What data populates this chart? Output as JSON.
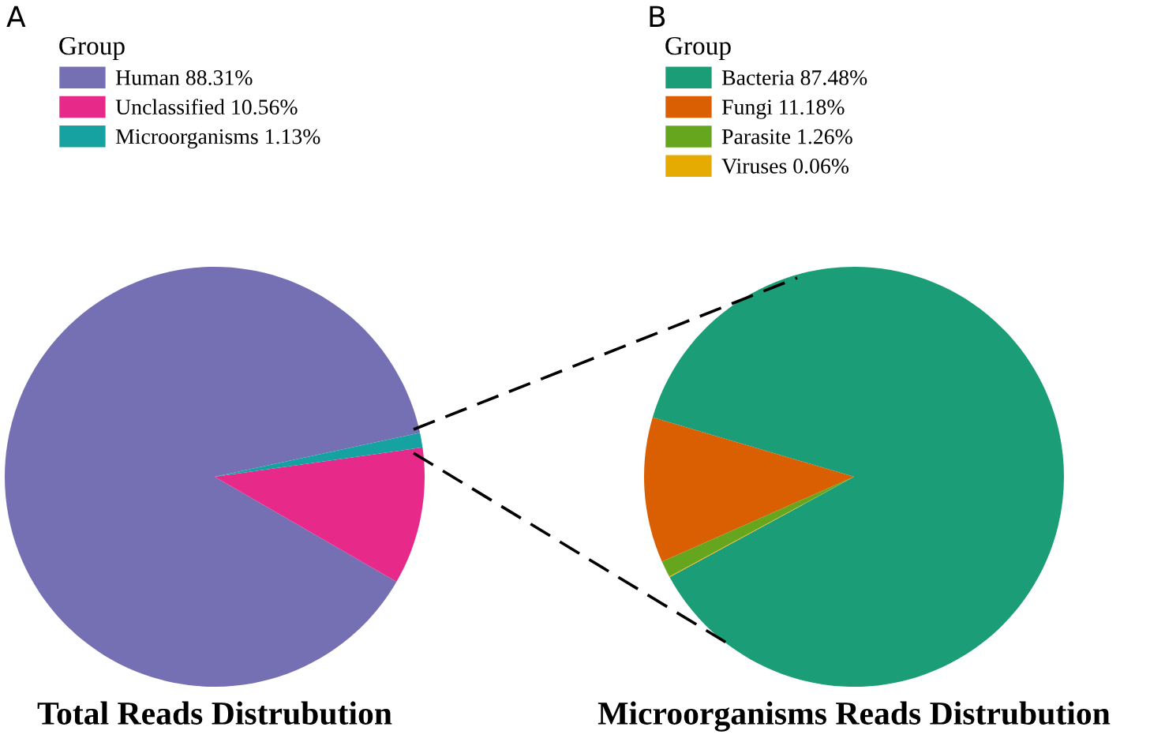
{
  "chart_data": [
    {
      "type": "pie",
      "title": "Total Reads Distrubution",
      "legend_title": "Group",
      "legend": "top left",
      "annotations": [
        "A"
      ],
      "categories": [
        "Human",
        "Unclassified",
        "Microorganisms"
      ],
      "values": [
        88.31,
        10.56,
        1.13
      ],
      "value_labels": [
        "88.31%",
        "10.56%",
        "1.13%"
      ],
      "colors": [
        "#7570b3",
        "#e7298a",
        "#17a2a2"
      ]
    },
    {
      "type": "pie",
      "title": "Microorganisms Reads Distrubution",
      "legend_title": "Group",
      "legend": "top left",
      "annotations": [
        "B"
      ],
      "categories": [
        "Bacteria",
        "Fungi",
        "Parasite",
        "Viruses"
      ],
      "values": [
        87.48,
        11.18,
        1.26,
        0.06
      ],
      "value_labels": [
        "87.48%",
        "11.18%",
        "1.26%",
        "0.06%"
      ],
      "colors": [
        "#1b9e77",
        "#d95f02",
        "#66a61e",
        "#e6ab02"
      ]
    }
  ]
}
